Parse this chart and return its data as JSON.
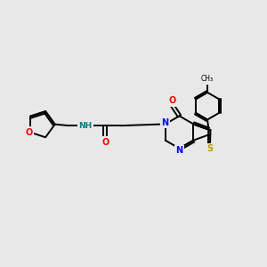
{
  "bg_color": "#e8e8e8",
  "bond_color": "#000000",
  "atom_colors": {
    "N": "#0000ff",
    "O": "#ff0000",
    "S": "#b8a000",
    "H": "#008080",
    "C": "#000000"
  },
  "figsize": [
    3.0,
    3.0
  ],
  "dpi": 100
}
